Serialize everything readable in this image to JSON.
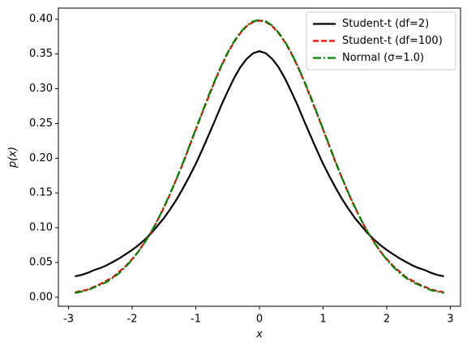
{
  "chart_data": {
    "type": "line",
    "xlabel": "x",
    "ylabel": "p(x)",
    "x": [
      -2.9,
      -2.8,
      -2.7,
      -2.6,
      -2.5,
      -2.4,
      -2.3,
      -2.2,
      -2.1,
      -2.0,
      -1.9,
      -1.8,
      -1.7,
      -1.6,
      -1.5,
      -1.4,
      -1.3,
      -1.2,
      -1.1,
      -1.0,
      -0.9,
      -0.8,
      -0.7,
      -0.6,
      -0.5,
      -0.4,
      -0.3,
      -0.2,
      -0.1,
      0,
      0.1,
      0.2,
      0.3,
      0.4,
      0.5,
      0.6,
      0.7,
      0.8,
      0.9,
      1.0,
      1.1,
      1.2,
      1.3,
      1.4,
      1.5,
      1.6,
      1.7,
      1.8,
      1.9,
      2.0,
      2.1,
      2.2,
      2.3,
      2.4,
      2.5,
      2.6,
      2.7,
      2.8,
      2.9
    ],
    "series": [
      {
        "name": "Student-t (df=2)",
        "color": "#000000",
        "linestyle": "solid",
        "values": [
          0.03,
          0.032,
          0.035,
          0.039,
          0.042,
          0.046,
          0.051,
          0.056,
          0.062,
          0.068,
          0.075,
          0.083,
          0.092,
          0.103,
          0.114,
          0.127,
          0.141,
          0.157,
          0.174,
          0.192,
          0.212,
          0.233,
          0.254,
          0.276,
          0.296,
          0.315,
          0.331,
          0.343,
          0.351,
          0.354,
          0.351,
          0.343,
          0.331,
          0.315,
          0.296,
          0.276,
          0.254,
          0.233,
          0.212,
          0.192,
          0.174,
          0.157,
          0.141,
          0.127,
          0.114,
          0.103,
          0.092,
          0.083,
          0.075,
          0.068,
          0.062,
          0.056,
          0.051,
          0.046,
          0.042,
          0.039,
          0.035,
          0.032,
          0.03
        ]
      },
      {
        "name": "Student-t (df=100)",
        "color": "#ff0000",
        "linestyle": "dashed",
        "values": [
          0.007,
          0.009,
          0.011,
          0.015,
          0.019,
          0.024,
          0.029,
          0.037,
          0.045,
          0.055,
          0.066,
          0.08,
          0.094,
          0.111,
          0.129,
          0.149,
          0.171,
          0.193,
          0.217,
          0.241,
          0.265,
          0.288,
          0.311,
          0.332,
          0.351,
          0.367,
          0.38,
          0.39,
          0.396,
          0.398,
          0.396,
          0.39,
          0.38,
          0.367,
          0.351,
          0.332,
          0.311,
          0.288,
          0.265,
          0.241,
          0.217,
          0.193,
          0.171,
          0.149,
          0.129,
          0.111,
          0.094,
          0.08,
          0.066,
          0.055,
          0.045,
          0.037,
          0.029,
          0.024,
          0.019,
          0.015,
          0.011,
          0.009,
          0.007
        ]
      },
      {
        "name": "Normal (σ=1.0)",
        "color": "#008000",
        "linestyle": "dashdot",
        "values": [
          0.006,
          0.008,
          0.01,
          0.014,
          0.018,
          0.022,
          0.028,
          0.035,
          0.044,
          0.054,
          0.066,
          0.079,
          0.094,
          0.111,
          0.13,
          0.15,
          0.171,
          0.194,
          0.218,
          0.242,
          0.266,
          0.29,
          0.312,
          0.333,
          0.352,
          0.368,
          0.381,
          0.391,
          0.397,
          0.399,
          0.397,
          0.391,
          0.381,
          0.368,
          0.352,
          0.333,
          0.312,
          0.29,
          0.266,
          0.242,
          0.218,
          0.194,
          0.171,
          0.15,
          0.13,
          0.111,
          0.094,
          0.079,
          0.066,
          0.054,
          0.044,
          0.035,
          0.028,
          0.022,
          0.018,
          0.014,
          0.01,
          0.008,
          0.006
        ]
      }
    ],
    "xlim": [
      -3.16,
      3.16
    ],
    "ylim": [
      -0.013,
      0.416
    ],
    "xticks": [
      -3,
      -2,
      -1,
      0,
      1,
      2,
      3
    ],
    "yticks": [
      {
        "value": 0,
        "label": "0.00"
      },
      {
        "value": 0.05,
        "label": "0.05"
      },
      {
        "value": 0.1,
        "label": "0.10"
      },
      {
        "value": 0.15,
        "label": "0.15"
      },
      {
        "value": 0.2,
        "label": "0.20"
      },
      {
        "value": 0.25,
        "label": "0.25"
      },
      {
        "value": 0.3,
        "label": "0.30"
      },
      {
        "value": 0.35,
        "label": "0.35"
      },
      {
        "value": 0.4,
        "label": "0.40"
      }
    ],
    "grid": false,
    "legend": "upper right"
  }
}
